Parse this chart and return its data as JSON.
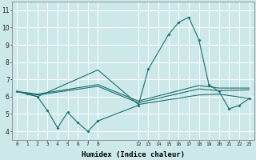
{
  "xlabel": "Humidex (Indice chaleur)",
  "ylabel": "",
  "xlim": [
    -0.5,
    23.5
  ],
  "ylim": [
    3.5,
    11.5
  ],
  "xticks": [
    0,
    1,
    2,
    3,
    4,
    5,
    6,
    7,
    8,
    12,
    13,
    14,
    15,
    16,
    17,
    18,
    19,
    20,
    21,
    22,
    23
  ],
  "yticks": [
    4,
    5,
    6,
    7,
    8,
    9,
    10,
    11
  ],
  "bg_color": "#cce8e8",
  "line_color": "#1a7070",
  "grid_color": "#ffffff",
  "line1_x": [
    0,
    1,
    2,
    3,
    4,
    5,
    6,
    7,
    8,
    12,
    13,
    15,
    16,
    17,
    18,
    19,
    20,
    21,
    22,
    23
  ],
  "line1_y": [
    6.3,
    6.2,
    6.0,
    5.2,
    4.2,
    5.1,
    4.5,
    4.0,
    4.6,
    5.5,
    7.6,
    9.6,
    10.3,
    10.6,
    9.3,
    6.7,
    6.3,
    5.3,
    5.5,
    5.9
  ],
  "line2_x": [
    0,
    2,
    8,
    12,
    18,
    20,
    23
  ],
  "line2_y": [
    6.3,
    6.15,
    6.7,
    5.75,
    6.65,
    6.5,
    6.5
  ],
  "line3_x": [
    0,
    2,
    8,
    12,
    18,
    20,
    23
  ],
  "line3_y": [
    6.3,
    6.1,
    6.6,
    5.65,
    6.45,
    6.35,
    6.4
  ],
  "line4_x": [
    0,
    2,
    8,
    12,
    18,
    20,
    23
  ],
  "line4_y": [
    6.3,
    6.0,
    7.55,
    5.55,
    6.1,
    6.15,
    5.9
  ]
}
